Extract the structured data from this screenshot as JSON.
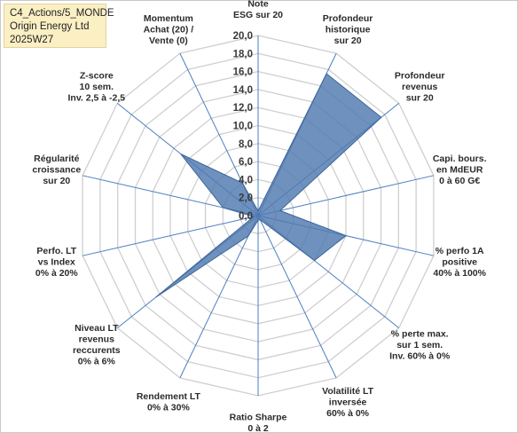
{
  "title_box": {
    "line1": "C4_Actions/5_MONDE",
    "line2": "Origin Energy Ltd",
    "line3": "2025W27"
  },
  "colors": {
    "fill": "#4f79b0",
    "stroke": "#3c6499",
    "grid": "#cfcfcf",
    "spoke": "#4a7fc1",
    "title_bg": "#fbefc4"
  },
  "chart_data": {
    "type": "radar",
    "title": "",
    "rmin": 0,
    "rmax": 20,
    "tick_step": 2,
    "tick_labels": [
      "0,0",
      "2,0",
      "4,0",
      "6,0",
      "8,0",
      "10,0",
      "12,0",
      "14,0",
      "16,0",
      "18,0",
      "20,0"
    ],
    "axes": [
      [
        "Note",
        "ESG sur 20"
      ],
      [
        "Profondeur",
        "historique",
        "sur 20"
      ],
      [
        "Profondeur",
        "revenus",
        "sur 20"
      ],
      [
        "Capi. bours.",
        "en MdEUR",
        "0 à 60 G€"
      ],
      [
        "% perfo 1A",
        "positive",
        "40% à 100%"
      ],
      [
        "% perte max.",
        "sur 1 sem.",
        "Inv. 60% à 0%"
      ],
      [
        "Volatilité LT",
        "inversée",
        "60% à 0%"
      ],
      [
        "Ratio Sharpe",
        "0 à 2"
      ],
      [
        "Rendement LT",
        "0% à 30%"
      ],
      [
        "Niveau LT",
        "revenus",
        "reccurents",
        "0% à 6%"
      ],
      [
        "Perfo. LT",
        "vs Index",
        "0% à 20%"
      ],
      [
        "Régularité",
        "croissance",
        "sur 20"
      ],
      [
        "Z-score",
        "10 sem.",
        "Inv. 2,5 à -2,5"
      ],
      [
        "Momentum",
        "Achat (20) /",
        "Vente (0)"
      ]
    ],
    "values": [
      0.5,
      17.5,
      17.5,
      2.5,
      10.0,
      8.0,
      0.5,
      0.5,
      2.5,
      14.5,
      0.5,
      4.0,
      11.0,
      4.0
    ],
    "grid": true
  }
}
